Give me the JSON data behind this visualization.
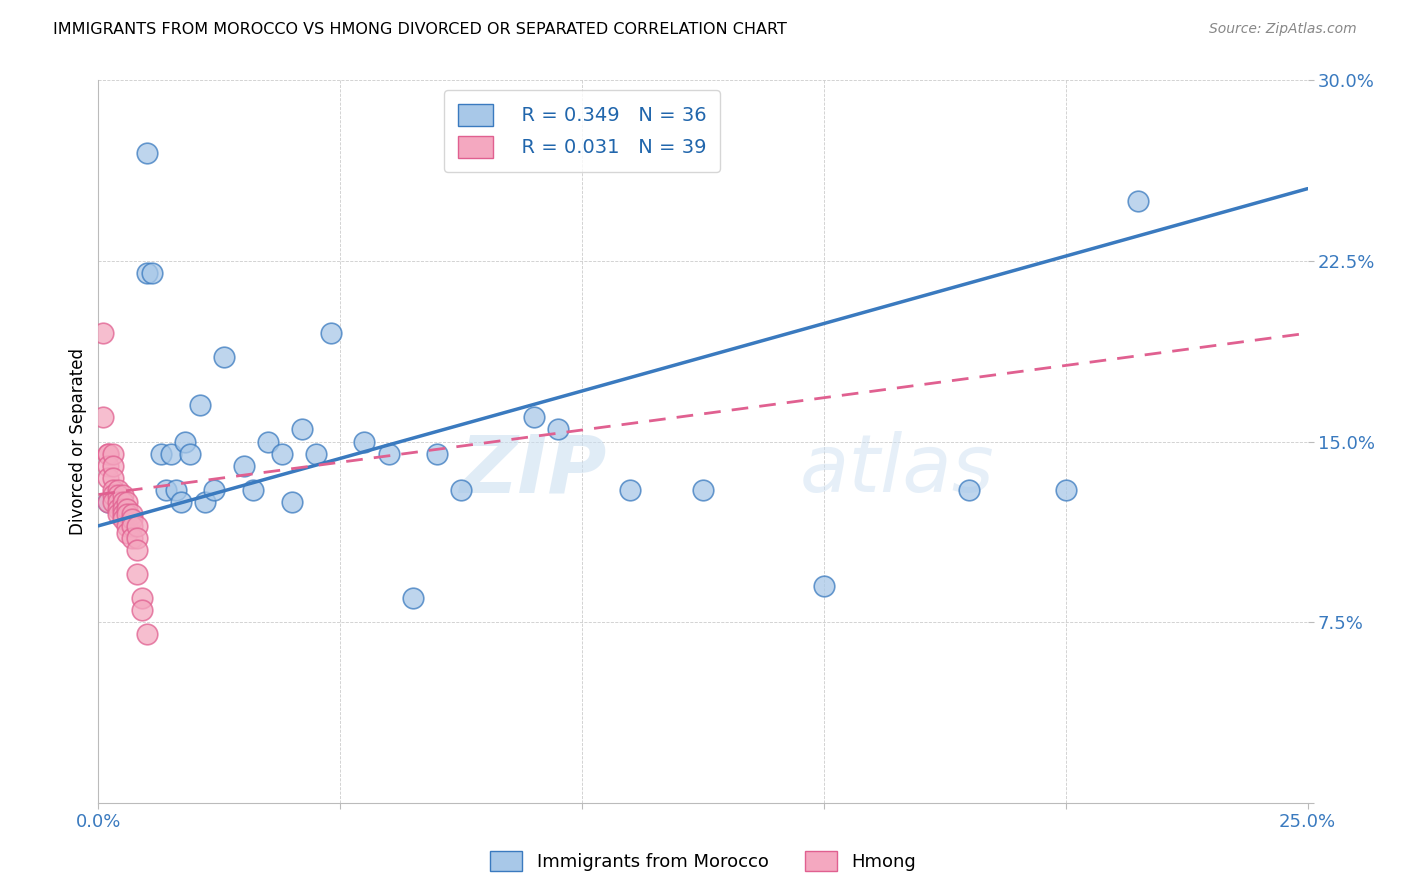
{
  "title": "IMMIGRANTS FROM MOROCCO VS HMONG DIVORCED OR SEPARATED CORRELATION CHART",
  "source": "Source: ZipAtlas.com",
  "ylabel": "Divorced or Separated",
  "xlim": [
    0.0,
    0.25
  ],
  "ylim": [
    0.0,
    0.3
  ],
  "xticks": [
    0.0,
    0.05,
    0.1,
    0.15,
    0.2,
    0.25
  ],
  "yticks": [
    0.0,
    0.075,
    0.15,
    0.225,
    0.3
  ],
  "xticklabels": [
    "0.0%",
    "",
    "",
    "",
    "",
    "25.0%"
  ],
  "yticklabels": [
    "",
    "7.5%",
    "15.0%",
    "22.5%",
    "30.0%"
  ],
  "legend_label_blue": "Immigrants from Morocco",
  "legend_label_pink": "Hmong",
  "legend_R_blue": "R = 0.349",
  "legend_N_blue": "N = 36",
  "legend_R_pink": "R = 0.031",
  "legend_N_pink": "N = 39",
  "blue_color": "#a8c8e8",
  "pink_color": "#f4a8c0",
  "blue_line_color": "#3a7abf",
  "pink_line_color": "#e06090",
  "watermark_zip": "ZIP",
  "watermark_atlas": "atlas",
  "morocco_x": [
    0.002,
    0.01,
    0.01,
    0.011,
    0.013,
    0.014,
    0.015,
    0.016,
    0.017,
    0.018,
    0.019,
    0.021,
    0.022,
    0.024,
    0.026,
    0.03,
    0.032,
    0.035,
    0.038,
    0.04,
    0.042,
    0.045,
    0.048,
    0.055,
    0.06,
    0.065,
    0.07,
    0.075,
    0.09,
    0.095,
    0.11,
    0.125,
    0.15,
    0.18,
    0.2,
    0.215
  ],
  "morocco_y": [
    0.125,
    0.27,
    0.22,
    0.22,
    0.145,
    0.13,
    0.145,
    0.13,
    0.125,
    0.15,
    0.145,
    0.165,
    0.125,
    0.13,
    0.185,
    0.14,
    0.13,
    0.15,
    0.145,
    0.125,
    0.155,
    0.145,
    0.195,
    0.15,
    0.145,
    0.085,
    0.145,
    0.13,
    0.16,
    0.155,
    0.13,
    0.13,
    0.09,
    0.13,
    0.13,
    0.25
  ],
  "hmong_x": [
    0.001,
    0.001,
    0.002,
    0.002,
    0.002,
    0.002,
    0.002,
    0.003,
    0.003,
    0.003,
    0.003,
    0.003,
    0.003,
    0.004,
    0.004,
    0.004,
    0.004,
    0.004,
    0.005,
    0.005,
    0.005,
    0.005,
    0.005,
    0.006,
    0.006,
    0.006,
    0.006,
    0.006,
    0.007,
    0.007,
    0.007,
    0.007,
    0.008,
    0.008,
    0.008,
    0.008,
    0.009,
    0.009,
    0.01
  ],
  "hmong_y": [
    0.195,
    0.16,
    0.145,
    0.145,
    0.14,
    0.135,
    0.125,
    0.145,
    0.14,
    0.135,
    0.13,
    0.128,
    0.125,
    0.13,
    0.128,
    0.125,
    0.122,
    0.12,
    0.128,
    0.125,
    0.122,
    0.12,
    0.118,
    0.125,
    0.122,
    0.12,
    0.115,
    0.112,
    0.12,
    0.118,
    0.115,
    0.11,
    0.115,
    0.11,
    0.105,
    0.095,
    0.085,
    0.08,
    0.07
  ],
  "blue_trendline_x": [
    0.0,
    0.25
  ],
  "blue_trendline_y": [
    0.115,
    0.255
  ],
  "pink_trendline_x": [
    0.0,
    0.25
  ],
  "pink_trendline_y": [
    0.128,
    0.195
  ]
}
